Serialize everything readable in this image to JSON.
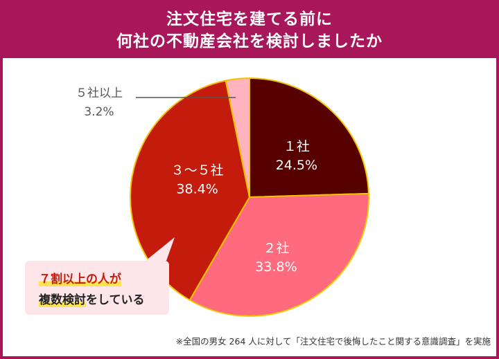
{
  "header": {
    "line1": "注文住宅を建てる前に",
    "line2": "何社の不動産会社を検討しましたか"
  },
  "chart_data": {
    "type": "pie",
    "title": "注文住宅を建てる前に何社の不動産会社を検討しましたか",
    "slices": [
      {
        "label": "１社",
        "value": 24.5,
        "value_label": "24.5%",
        "color": "#560000",
        "text_color": "#ffffff"
      },
      {
        "label": "２社",
        "value": 33.8,
        "value_label": "33.8%",
        "color": "#ff6b7e",
        "text_color": "#ffffff"
      },
      {
        "label": "３～５社",
        "value": 38.4,
        "value_label": "38.4%",
        "color": "#c41c0c",
        "text_color": "#ffffff"
      },
      {
        "label": "５社以上",
        "value": 3.2,
        "value_label": "3.2%",
        "color": "#ffb3bf",
        "text_color": "#555555"
      }
    ],
    "start": "12 o'clock",
    "direction": "clockwise",
    "border_color": "#f5c400"
  },
  "callout": {
    "line1_highlight": "７割以上の人が",
    "line2_highlight": "複数検討",
    "line2_rest": "をしている"
  },
  "footnote": "※全国の男女 264 人に対して「注文住宅で後悔したこと関する意識調査」を実施"
}
